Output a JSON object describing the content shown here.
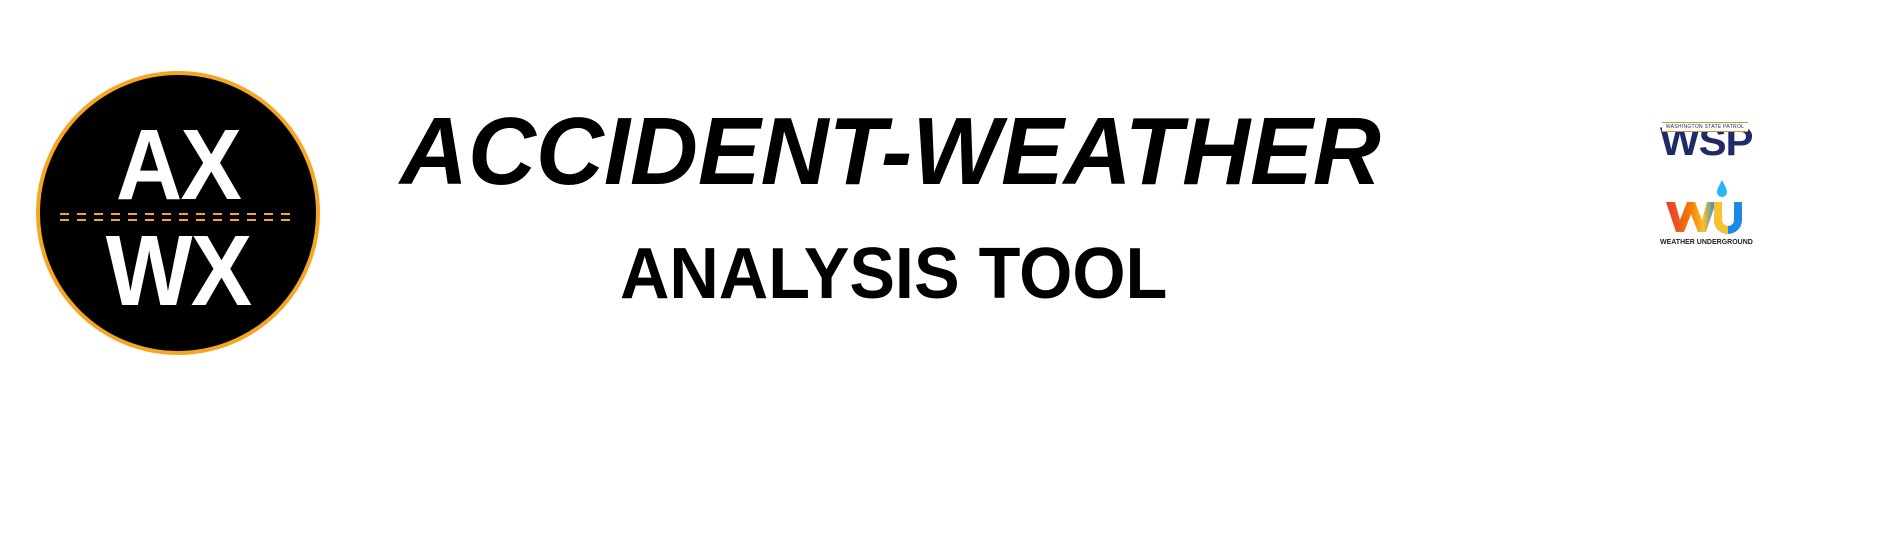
{
  "logo": {
    "top_text": "AX",
    "bottom_text": "WX",
    "ring_color": "#f5a623",
    "fill_color": "#000000"
  },
  "title": {
    "main": "ACCIDENT-WEATHER",
    "sub": "ANALYSIS TOOL"
  },
  "partners": {
    "wsp": {
      "wordmark": "WSP",
      "band_text": "WASHINGTON STATE PATROL",
      "color": "#1f2a6b"
    },
    "wu": {
      "caption": "WEATHER UNDERGROUND",
      "icon": "wu-logo-icon"
    }
  }
}
